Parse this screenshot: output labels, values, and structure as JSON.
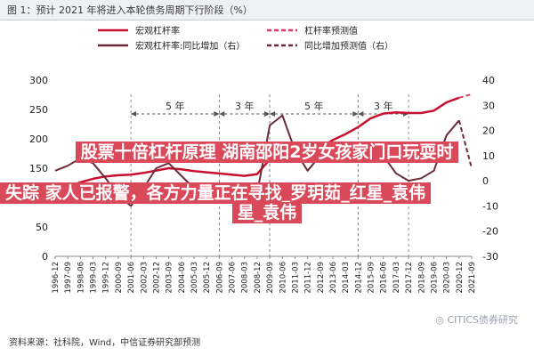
{
  "header": {
    "title": "图 1：预计 2021 年将进入本轮债务周期下行阶段（%）"
  },
  "chart_data": {
    "type": "line",
    "title": "图 1：预计 2021 年将进入本轮债务周期下行阶段（%）",
    "x_ticks": [
      "1996-12",
      "1997-09",
      "1998-06",
      "1999-03",
      "1999-12",
      "2000-09",
      "2001-06",
      "2002-03",
      "2002-12",
      "2003-09",
      "2004-06",
      "2005-03",
      "2005-12",
      "2006-09",
      "2007-06",
      "2008-03",
      "2008-12",
      "2009-09",
      "2010-06",
      "2011-03",
      "2011-12",
      "2012-09",
      "2013-06",
      "2014-03",
      "2014-12",
      "2015-09",
      "2016-06",
      "2017-03",
      "2017-12",
      "2018-09",
      "2019-06",
      "2020-03",
      "2020-12",
      "2021-09"
    ],
    "y_left": {
      "ticks": [
        0,
        50,
        100,
        150,
        200,
        250,
        300
      ],
      "range": [
        0,
        300
      ]
    },
    "y_right": {
      "ticks": [
        -30,
        -20,
        -10,
        0,
        10,
        20,
        30,
        40
      ],
      "range": [
        -30,
        40
      ]
    },
    "legend": [
      {
        "label": "宏观杠杆率",
        "style": "solid",
        "color": "#c8102e"
      },
      {
        "label": "杠杆率预测值",
        "style": "dashed",
        "color": "#d93c5e"
      },
      {
        "label": "宏观杠杆率:同比增加（右）",
        "style": "solid",
        "color": "#6b2a3a"
      },
      {
        "label": "同比增加预测值（右）",
        "style": "dashed",
        "color": "#6b2a3a"
      }
    ],
    "annotations": [
      {
        "label": "5 年",
        "from": "2001-06",
        "to": "2006-09"
      },
      {
        "label": "3 年",
        "from": "2006-09",
        "to": "2009-09"
      },
      {
        "label": "5 年",
        "from": "2009-09",
        "to": "2014-12"
      },
      {
        "label": "3 年",
        "from": "2014-12",
        "to": "2017-12"
      }
    ],
    "series": [
      {
        "name": "宏观杠杆率",
        "axis": "left",
        "x": [
          "1996-12",
          "1997-09",
          "1998-06",
          "1999-03",
          "1999-12",
          "2000-09",
          "2001-06",
          "2002-03",
          "2002-12",
          "2003-09",
          "2004-06",
          "2005-03",
          "2005-12",
          "2006-09",
          "2007-06",
          "2008-03",
          "2008-12",
          "2009-09",
          "2010-06",
          "2011-03",
          "2011-12",
          "2012-09",
          "2013-06",
          "2014-03",
          "2014-12",
          "2015-09",
          "2016-06",
          "2017-03",
          "2017-12",
          "2018-09",
          "2019-06",
          "2020-03",
          "2020-12"
        ],
        "values": [
          112,
          118,
          126,
          132,
          136,
          138,
          139,
          142,
          146,
          150,
          148,
          145,
          143,
          141,
          139,
          137,
          140,
          165,
          172,
          170,
          172,
          185,
          198,
          208,
          220,
          235,
          243,
          245,
          244,
          244,
          248,
          262,
          270
        ]
      },
      {
        "name": "杠杆率预测值",
        "axis": "left",
        "x": [
          "2020-12",
          "2021-09"
        ],
        "values": [
          270,
          276
        ]
      },
      {
        "name": "宏观杠杆率:同比增加（右）",
        "axis": "right",
        "x": [
          "1996-12",
          "1997-09",
          "1998-06",
          "1999-03",
          "1999-12",
          "2000-09",
          "2001-06",
          "2002-03",
          "2002-12",
          "2003-09",
          "2004-06",
          "2005-03",
          "2005-12",
          "2006-09",
          "2007-06",
          "2008-03",
          "2008-12",
          "2009-09",
          "2010-06",
          "2011-03",
          "2011-12",
          "2012-09",
          "2013-06",
          "2014-03",
          "2014-12",
          "2015-09",
          "2016-06",
          "2017-03",
          "2017-12",
          "2018-09",
          "2019-06",
          "2020-03",
          "2020-12"
        ],
        "values": [
          4,
          6,
          9,
          7,
          1,
          -6,
          -10,
          -3,
          5,
          7,
          2,
          -3,
          -4,
          -3,
          -5,
          -9,
          -5,
          22,
          26,
          12,
          4,
          10,
          13,
          15,
          13,
          14,
          10,
          3,
          0,
          1,
          4,
          18,
          24
        ]
      },
      {
        "name": "同比增加预测值（右）",
        "axis": "right",
        "x": [
          "2020-12",
          "2021-09"
        ],
        "values": [
          24,
          5
        ]
      }
    ],
    "grid": false,
    "legend_position": "top"
  },
  "overlay": {
    "line1": "股票十倍杠杆原理 湖南邵阳2岁女孩家门口玩耍时",
    "line2": "失踪 家人已报警，各方力量正在寻找_罗玥茹_红星_袁伟",
    "line3": "星_袁伟"
  },
  "footer": {
    "source": "资料来源：社科院，Wind，中信证券研究部预测"
  },
  "watermark": {
    "text": "CITICS债券研究"
  }
}
